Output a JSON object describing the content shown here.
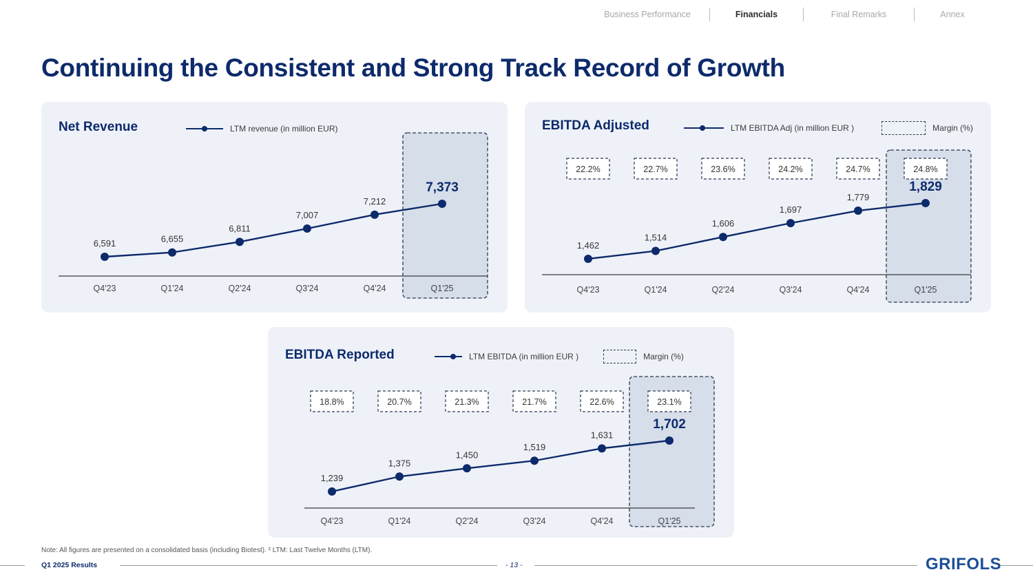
{
  "nav": {
    "items": [
      {
        "label": "Business Performance",
        "active": false
      },
      {
        "label": "Financials",
        "active": true
      },
      {
        "label": "Final Remarks",
        "active": false
      },
      {
        "label": "Annex",
        "active": false
      }
    ]
  },
  "page": {
    "title": "Continuing the Consistent and Strong Track Record of Growth"
  },
  "colors": {
    "brand_navy": "#0d2a6b",
    "card_bg": "#eef2f8",
    "highlight_bg": "#d6deea",
    "logo_blue": "#1c4f95"
  },
  "chart_data": [
    {
      "id": "net-revenue",
      "type": "line",
      "title": "Net Revenue",
      "legend": {
        "series_label": "LTM revenue (in million EUR)"
      },
      "categories": [
        "Q4'23",
        "Q1'24",
        "Q2'24",
        "Q3'24",
        "Q4'24",
        "Q1'25"
      ],
      "series": [
        {
          "name": "LTM revenue (in million EUR)",
          "values": [
            6591,
            6655,
            6811,
            7007,
            7212,
            7373
          ],
          "labels": [
            "6,591",
            "6,655",
            "6,811",
            "7,007",
            "7,212",
            "7,373"
          ]
        }
      ],
      "highlight_category": "Q1'25",
      "grid": false
    },
    {
      "id": "ebitda-adjusted",
      "type": "line",
      "title": "EBITDA Adjusted",
      "legend": {
        "series_label": "LTM EBITDA Adj (in million EUR )",
        "margin_label": "Margin (%)"
      },
      "categories": [
        "Q4'23",
        "Q1'24",
        "Q2'24",
        "Q3'24",
        "Q4'24",
        "Q1'25"
      ],
      "series": [
        {
          "name": "LTM EBITDA Adj (in million EUR)",
          "values": [
            1462,
            1514,
            1606,
            1697,
            1779,
            1829
          ],
          "labels": [
            "1,462",
            "1,514",
            "1,606",
            "1,697",
            "1,779",
            "1,829"
          ]
        }
      ],
      "margins": [
        "22.2%",
        "22.7%",
        "23.6%",
        "24.2%",
        "24.7%",
        "24.8%"
      ],
      "highlight_category": "Q1'25",
      "grid": false
    },
    {
      "id": "ebitda-reported",
      "type": "line",
      "title": "EBITDA Reported",
      "legend": {
        "series_label": "LTM EBITDA (in million EUR )",
        "margin_label": "Margin (%)"
      },
      "categories": [
        "Q4'23",
        "Q1'24",
        "Q2'24",
        "Q3'24",
        "Q4'24",
        "Q1'25"
      ],
      "series": [
        {
          "name": "LTM EBITDA (in million EUR)",
          "values": [
            1239,
            1375,
            1450,
            1519,
            1631,
            1702
          ],
          "labels": [
            "1,239",
            "1,375",
            "1,450",
            "1,519",
            "1,631",
            "1,702"
          ]
        }
      ],
      "margins": [
        "18.8%",
        "20.7%",
        "21.3%",
        "21.7%",
        "22.6%",
        "23.1%"
      ],
      "highlight_category": "Q1'25",
      "grid": false
    }
  ],
  "footer": {
    "note": "Note: All figures are presented on a consolidated basis (including Biotest). ² LTM: Last Twelve Months (LTM).",
    "left": "Q1 2025 Results",
    "page": "- 13 -",
    "logo": "GRIFOLS"
  }
}
